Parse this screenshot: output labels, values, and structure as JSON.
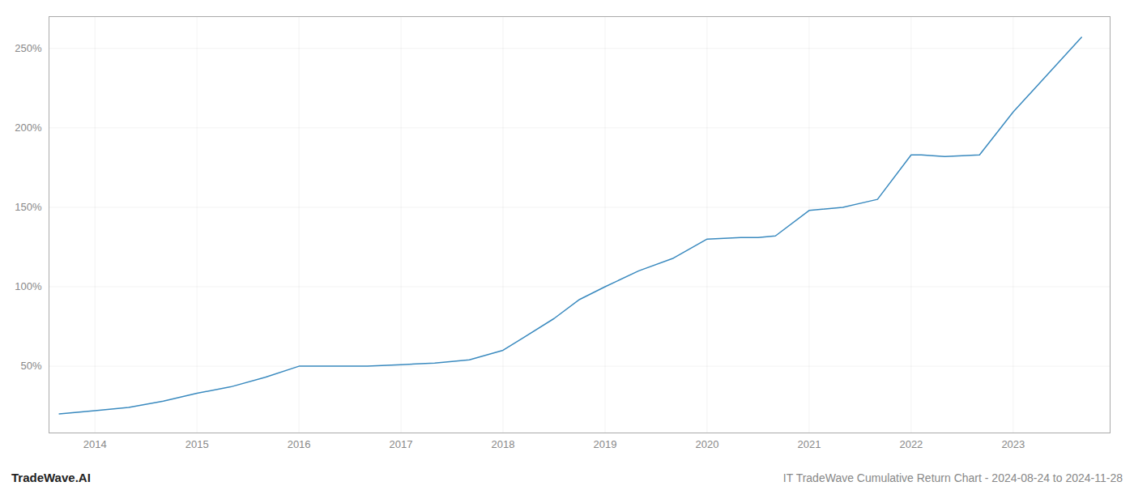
{
  "chart_data": {
    "type": "line",
    "title": "IT TradeWave Cumulative Return Chart - 2024-08-24 to 2024-11-28",
    "annotations": [
      "TradeWave.AI"
    ],
    "x": [
      2013.65,
      2014.0,
      2014.33,
      2014.67,
      2015.0,
      2015.33,
      2015.67,
      2016.0,
      2016.33,
      2016.67,
      2017.0,
      2017.33,
      2017.67,
      2018.0,
      2018.2,
      2018.5,
      2018.75,
      2019.0,
      2019.33,
      2019.67,
      2020.0,
      2020.33,
      2020.5,
      2020.67,
      2021.0,
      2021.33,
      2021.67,
      2022.0,
      2022.1,
      2022.33,
      2022.67,
      2023.0,
      2023.67
    ],
    "values": [
      20,
      22,
      24,
      28,
      33,
      37,
      43,
      50,
      50,
      50,
      51,
      52,
      54,
      60,
      68,
      80,
      92,
      100,
      110,
      118,
      130,
      131,
      131,
      132,
      148,
      150,
      155,
      183,
      183,
      182,
      183,
      210,
      257
    ],
    "color": "#3a8abf",
    "xlim": [
      2013.55,
      2023.95
    ],
    "xticks": [
      2014,
      2015,
      2016,
      2017,
      2018,
      2019,
      2020,
      2021,
      2022,
      2023
    ],
    "ylim": [
      8,
      270
    ],
    "yticks": [
      {
        "value": 50,
        "label": "50%"
      },
      {
        "value": 100,
        "label": "100%"
      },
      {
        "value": 150,
        "label": "150%"
      },
      {
        "value": 200,
        "label": "200%"
      },
      {
        "value": 250,
        "label": "250%"
      }
    ],
    "grid": true
  }
}
